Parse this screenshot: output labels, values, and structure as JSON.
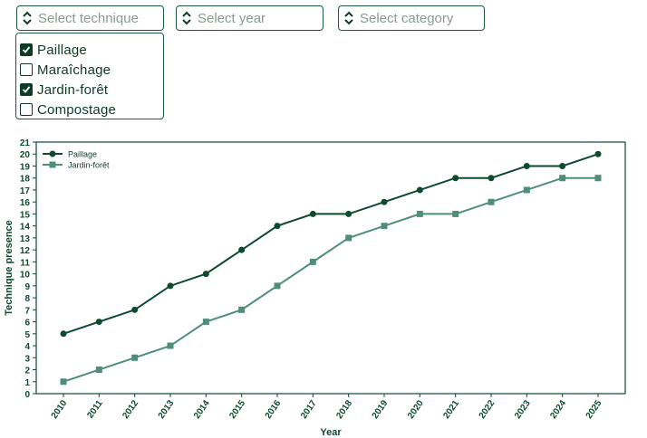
{
  "filters": {
    "technique_placeholder": "Select technique",
    "year_placeholder": "Select year",
    "category_placeholder": "Select category"
  },
  "checklist": {
    "items": [
      {
        "label": "Paillage",
        "checked": true
      },
      {
        "label": "Maraîchage",
        "checked": false
      },
      {
        "label": "Jardin-forêt",
        "checked": true
      },
      {
        "label": "Compostage",
        "checked": false
      }
    ]
  },
  "colors": {
    "accent": "#0d4a2e",
    "series1": "#0d4a2e",
    "series2": "#4f8f78"
  },
  "chart_data": {
    "type": "line",
    "x": [
      2010,
      2011,
      2012,
      2013,
      2014,
      2015,
      2016,
      2017,
      2018,
      2019,
      2020,
      2021,
      2022,
      2023,
      2024,
      2025
    ],
    "series": [
      {
        "name": "Paillage",
        "marker": "circle",
        "values": [
          5,
          6,
          7,
          9,
          10,
          12,
          14,
          15,
          15,
          16,
          17,
          18,
          18,
          19,
          19,
          20
        ]
      },
      {
        "name": "Jardin-forêt",
        "marker": "square",
        "values": [
          1,
          2,
          3,
          4,
          6,
          7,
          9,
          11,
          13,
          14,
          15,
          15,
          16,
          17,
          18,
          18
        ]
      }
    ],
    "xlabel": "Year",
    "ylabel": "Technique presence",
    "ylim": [
      0,
      21
    ],
    "yticks": [
      0,
      1,
      2,
      3,
      4,
      5,
      6,
      7,
      8,
      9,
      10,
      11,
      12,
      13,
      14,
      15,
      16,
      17,
      18,
      19,
      20,
      21
    ],
    "grid": false,
    "legend": "top-left"
  }
}
